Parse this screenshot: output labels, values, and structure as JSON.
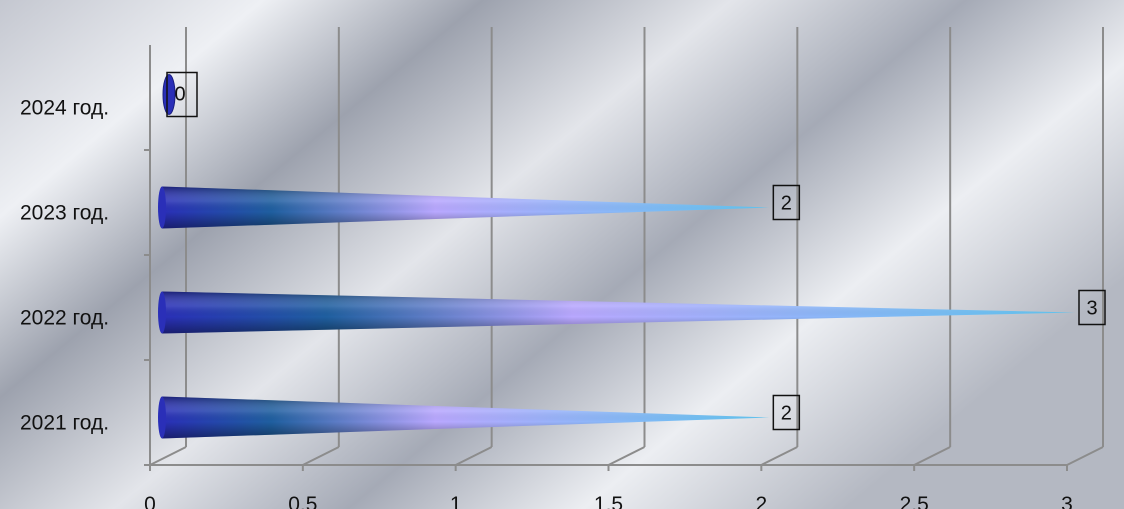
{
  "chart_data": {
    "type": "bar",
    "style": "3d-cone-horizontal",
    "categories": [
      "2021 год.",
      "2022 год.",
      "2023 год.",
      "2024 год."
    ],
    "values": [
      2,
      3,
      2,
      0
    ],
    "data_labels": [
      "2",
      "3",
      "2",
      "0"
    ],
    "x_ticks": [
      "0",
      "0,5",
      "1",
      "1,5",
      "2",
      "2,5",
      "3"
    ],
    "xlim": [
      0,
      3
    ],
    "grid": "vertical",
    "legend": "none",
    "title": "",
    "xlabel": "",
    "ylabel": "",
    "colors": {
      "cone_dark": "#2a2fb8",
      "cone_mid": "#1f5fa0",
      "cone_light": "#b9a8ff",
      "cone_tip": "#5fc6f2",
      "grid": "#8c8c8c"
    }
  }
}
